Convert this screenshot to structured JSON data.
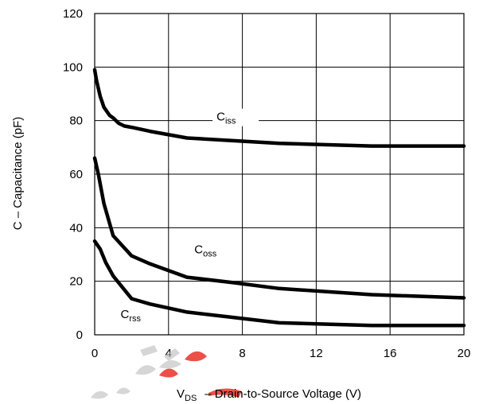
{
  "chart_data": {
    "type": "line",
    "xlabel_main": "V",
    "xlabel_sub": "DS",
    "xlabel_rest": "– Drain-to-Source Voltage (V)",
    "ylabel": "C – Capacitance (pF)",
    "xlim": [
      0,
      20
    ],
    "ylim": [
      0,
      120
    ],
    "x_ticks": [
      "0",
      "4",
      "8",
      "12",
      "16",
      "20"
    ],
    "y_ticks": [
      "0",
      "20",
      "40",
      "60",
      "80",
      "100",
      "120"
    ],
    "grid": true,
    "series": [
      {
        "name": "Ciss",
        "name_main": "C",
        "name_sub": "iss",
        "x": [
          0,
          0.1,
          0.3,
          0.5,
          0.8,
          1.0,
          1.3,
          1.6,
          2,
          3,
          5,
          7.5,
          10,
          15,
          20
        ],
        "y": [
          99,
          95,
          89,
          85,
          82,
          81,
          79,
          78,
          77.5,
          76,
          73.5,
          72.5,
          71.5,
          70.5,
          70.5
        ]
      },
      {
        "name": "Coss",
        "name_main": "C",
        "name_sub": "oss",
        "x": [
          0,
          0.2,
          0.5,
          1.0,
          2.0,
          3.0,
          5.0,
          7.5,
          10,
          15,
          20
        ],
        "y": [
          66,
          60,
          49,
          37,
          29.5,
          26.5,
          21.5,
          19.5,
          17.3,
          15,
          13.8
        ]
      },
      {
        "name": "Crss",
        "name_main": "C",
        "name_sub": "rss",
        "x": [
          0,
          0.3,
          0.6,
          1.0,
          2.0,
          3.0,
          5.0,
          7.5,
          10,
          15,
          20
        ],
        "y": [
          35,
          32,
          27,
          22,
          13.5,
          11.5,
          8.5,
          6.5,
          4.5,
          3.5,
          3.5
        ]
      }
    ],
    "annotations": [
      {
        "series": "Ciss",
        "x": 6.6,
        "y": 80
      },
      {
        "series": "Coss",
        "x": 5.4,
        "y": 30.5
      },
      {
        "series": "Crss",
        "x": 1.4,
        "y": 6.2
      }
    ]
  },
  "watermark": {
    "colors": {
      "red": "#e8332a",
      "grey": "#bcbcbc"
    }
  }
}
